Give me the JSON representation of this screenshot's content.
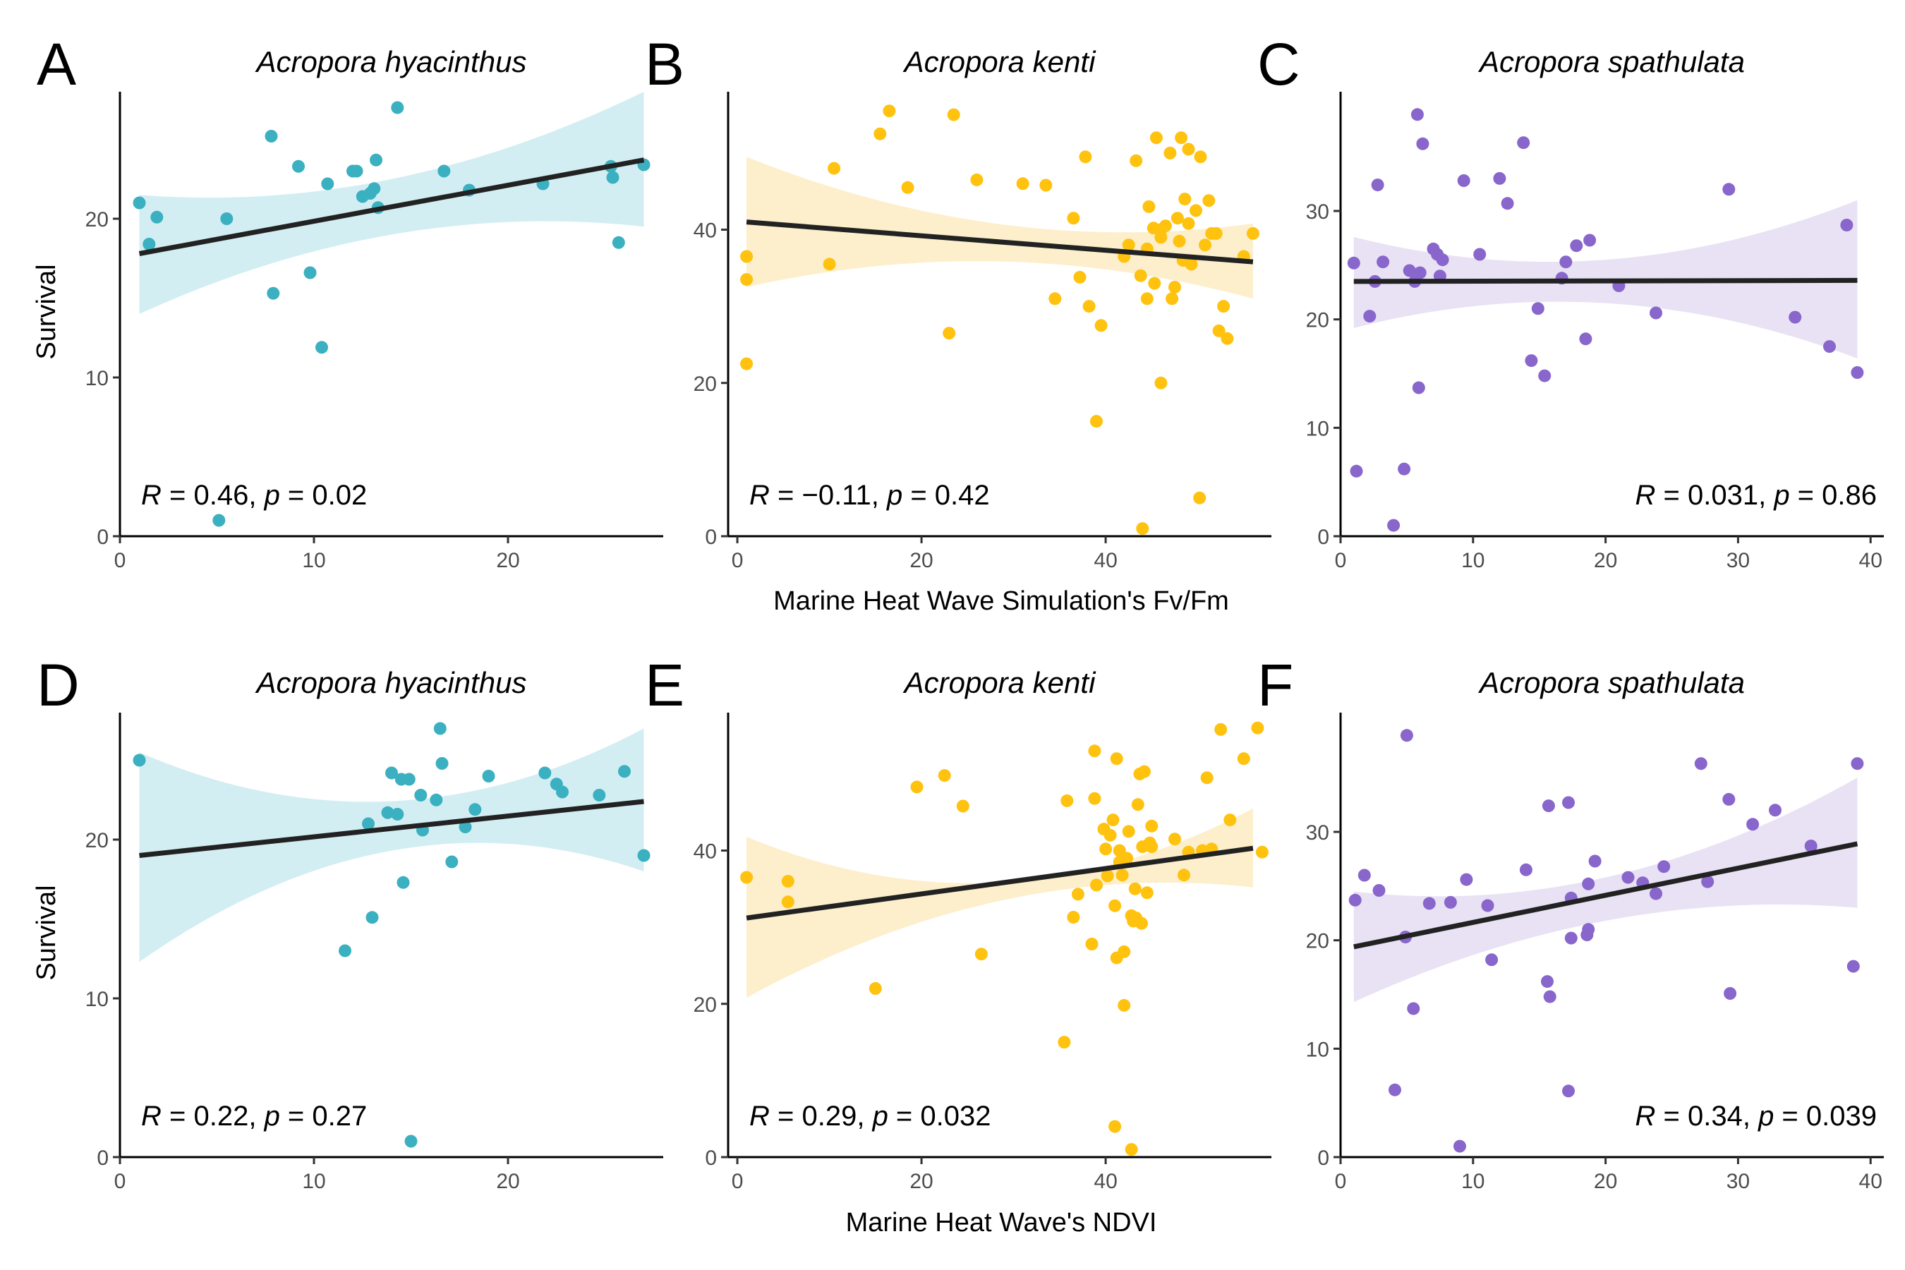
{
  "figure": {
    "row_axis_titles": [
      "Marine Heat Wave Simulation's Fv/Fm",
      "Marine Heat Wave's NDVI"
    ],
    "y_axis_title": "Survival"
  },
  "chart_data": [
    {
      "panel": "A",
      "type": "scatter",
      "title": "Acropora hyacinthus",
      "color": "#3BB0C0",
      "band_color": "#D3EEF3",
      "xlim": [
        0,
        28
      ],
      "ylim": [
        0,
        28
      ],
      "xticks": [
        0,
        10,
        20
      ],
      "yticks": [
        0,
        10,
        20
      ],
      "fit": {
        "x": [
          1,
          27
        ],
        "y": [
          17.8,
          23.7
        ]
      },
      "band": {
        "x": [
          1,
          14,
          27
        ],
        "upper": [
          21.5,
          22.5,
          28.0
        ],
        "lower": [
          14.0,
          19.0,
          19.5
        ]
      },
      "stat": {
        "r": "0.46",
        "p": "0.02"
      },
      "stat_anchor": "left",
      "points": [
        [
          1.0,
          21.0
        ],
        [
          1.5,
          18.4
        ],
        [
          1.9,
          20.1
        ],
        [
          5.1,
          1.0
        ],
        [
          5.5,
          20.0
        ],
        [
          7.8,
          25.2
        ],
        [
          7.9,
          15.3
        ],
        [
          9.2,
          23.3
        ],
        [
          9.8,
          16.6
        ],
        [
          10.4,
          11.9
        ],
        [
          10.7,
          22.2
        ],
        [
          12.0,
          23.0
        ],
        [
          12.2,
          23.0
        ],
        [
          12.5,
          21.4
        ],
        [
          12.9,
          21.6
        ],
        [
          13.1,
          21.9
        ],
        [
          13.2,
          23.7
        ],
        [
          13.3,
          20.7
        ],
        [
          14.3,
          27.0
        ],
        [
          16.7,
          23.0
        ],
        [
          18.0,
          21.8
        ],
        [
          21.8,
          22.2
        ],
        [
          25.3,
          23.3
        ],
        [
          25.4,
          22.6
        ],
        [
          25.7,
          18.5
        ],
        [
          27.0,
          23.4
        ]
      ]
    },
    {
      "panel": "B",
      "type": "scatter",
      "title": "Acropora kenti",
      "color": "#FFC20E",
      "band_color": "#FDEFCC",
      "xlim": [
        -1,
        58
      ],
      "ylim": [
        0,
        58
      ],
      "xticks": [
        0,
        20,
        40
      ],
      "yticks": [
        0,
        20,
        40
      ],
      "fit": {
        "x": [
          1,
          56
        ],
        "y": [
          41.0,
          35.8
        ]
      },
      "band": {
        "x": [
          1,
          30,
          56
        ],
        "upper": [
          49.5,
          40.5,
          40.8
        ],
        "lower": [
          32.5,
          35.8,
          31.0
        ]
      },
      "stat": {
        "r": "−0.11",
        "p": "0.42"
      },
      "stat_anchor": "left",
      "points": [
        [
          1.0,
          36.5
        ],
        [
          1.0,
          33.5
        ],
        [
          1.0,
          22.5
        ],
        [
          10.0,
          35.5
        ],
        [
          10.5,
          48.0
        ],
        [
          15.5,
          52.5
        ],
        [
          16.5,
          55.5
        ],
        [
          18.5,
          45.5
        ],
        [
          23.0,
          26.5
        ],
        [
          23.5,
          55.0
        ],
        [
          26.0,
          46.5
        ],
        [
          31.0,
          46.0
        ],
        [
          33.5,
          45.8
        ],
        [
          34.5,
          31.0
        ],
        [
          36.5,
          41.5
        ],
        [
          37.2,
          33.8
        ],
        [
          37.8,
          49.5
        ],
        [
          38.2,
          30.0
        ],
        [
          39.0,
          15.0
        ],
        [
          39.5,
          27.5
        ],
        [
          42.0,
          36.5
        ],
        [
          42.5,
          38.0
        ],
        [
          43.3,
          49.0
        ],
        [
          43.8,
          34.0
        ],
        [
          44.0,
          1.0
        ],
        [
          44.5,
          37.5
        ],
        [
          44.5,
          31.0
        ],
        [
          44.7,
          43.0
        ],
        [
          45.2,
          40.2
        ],
        [
          45.3,
          33.0
        ],
        [
          45.5,
          52.0
        ],
        [
          46.0,
          40.0
        ],
        [
          46.0,
          39.0
        ],
        [
          46.0,
          20.0
        ],
        [
          46.5,
          40.5
        ],
        [
          47.0,
          50.0
        ],
        [
          47.2,
          31.0
        ],
        [
          47.5,
          32.5
        ],
        [
          47.8,
          41.5
        ],
        [
          48.0,
          38.5
        ],
        [
          48.2,
          52.0
        ],
        [
          48.4,
          36.0
        ],
        [
          48.6,
          44.0
        ],
        [
          49.0,
          50.5
        ],
        [
          49.0,
          40.8
        ],
        [
          49.3,
          35.5
        ],
        [
          49.8,
          42.5
        ],
        [
          50.2,
          5.0
        ],
        [
          50.3,
          49.5
        ],
        [
          50.8,
          38.0
        ],
        [
          51.2,
          43.8
        ],
        [
          51.5,
          39.5
        ],
        [
          52.0,
          39.5
        ],
        [
          52.3,
          26.8
        ],
        [
          52.8,
          30.0
        ],
        [
          53.2,
          25.8
        ],
        [
          55.0,
          36.5
        ],
        [
          56.0,
          39.5
        ]
      ]
    },
    {
      "panel": "C",
      "type": "scatter",
      "title": "Acropora spathulata",
      "color": "#8866CC",
      "band_color": "#E8E2F4",
      "xlim": [
        0,
        41
      ],
      "ylim": [
        0,
        41
      ],
      "xticks": [
        0,
        10,
        20,
        30,
        40
      ],
      "yticks": [
        0,
        10,
        20,
        30
      ],
      "fit": {
        "x": [
          1,
          39
        ],
        "y": [
          23.5,
          23.6
        ]
      },
      "band": {
        "x": [
          1,
          20,
          39
        ],
        "upper": [
          27.6,
          25.5,
          31.0
        ],
        "lower": [
          19.2,
          21.5,
          16.4
        ]
      },
      "stat": {
        "r": "0.031",
        "p": "0.86"
      },
      "stat_anchor": "right",
      "points": [
        [
          1.0,
          25.2
        ],
        [
          1.2,
          6.0
        ],
        [
          2.2,
          20.3
        ],
        [
          2.6,
          23.5
        ],
        [
          2.8,
          32.4
        ],
        [
          3.2,
          25.3
        ],
        [
          4.0,
          1.0
        ],
        [
          4.8,
          6.2
        ],
        [
          5.2,
          24.5
        ],
        [
          5.6,
          23.5
        ],
        [
          5.8,
          38.9
        ],
        [
          5.9,
          13.7
        ],
        [
          6.0,
          24.3
        ],
        [
          6.2,
          36.2
        ],
        [
          7.0,
          26.5
        ],
        [
          7.3,
          26.0
        ],
        [
          7.5,
          24.0
        ],
        [
          7.7,
          25.5
        ],
        [
          9.3,
          32.8
        ],
        [
          10.5,
          26.0
        ],
        [
          12.0,
          33.0
        ],
        [
          12.6,
          30.7
        ],
        [
          13.8,
          36.3
        ],
        [
          14.4,
          16.2
        ],
        [
          14.9,
          21.0
        ],
        [
          15.4,
          14.8
        ],
        [
          16.7,
          23.8
        ],
        [
          17.0,
          25.3
        ],
        [
          17.8,
          26.8
        ],
        [
          18.5,
          18.2
        ],
        [
          18.8,
          27.3
        ],
        [
          21.0,
          23.1
        ],
        [
          23.8,
          20.6
        ],
        [
          29.3,
          32.0
        ],
        [
          34.3,
          20.2
        ],
        [
          36.9,
          17.5
        ],
        [
          38.2,
          28.7
        ],
        [
          39.0,
          15.1
        ]
      ]
    },
    {
      "panel": "D",
      "type": "scatter",
      "title": "Acropora hyacinthus",
      "color": "#3BB0C0",
      "band_color": "#D3EEF3",
      "xlim": [
        0,
        28
      ],
      "ylim": [
        0,
        28
      ],
      "xticks": [
        0,
        10,
        20
      ],
      "yticks": [
        0,
        10,
        20
      ],
      "fit": {
        "x": [
          1,
          27
        ],
        "y": [
          19.0,
          22.4
        ]
      },
      "band": {
        "x": [
          1,
          15,
          27
        ],
        "upper": [
          25.5,
          22.5,
          27.0
        ],
        "lower": [
          12.3,
          19.5,
          18.0
        ]
      },
      "stat": {
        "r": "0.22",
        "p": "0.27"
      },
      "stat_anchor": "left",
      "points": [
        [
          1.0,
          25.0
        ],
        [
          11.6,
          13.0
        ],
        [
          12.8,
          21.0
        ],
        [
          13.0,
          15.1
        ],
        [
          13.8,
          21.7
        ],
        [
          14.0,
          24.2
        ],
        [
          14.3,
          21.6
        ],
        [
          14.5,
          23.8
        ],
        [
          14.6,
          17.3
        ],
        [
          14.9,
          23.8
        ],
        [
          15.0,
          1.0
        ],
        [
          15.5,
          22.8
        ],
        [
          15.6,
          20.6
        ],
        [
          16.3,
          22.5
        ],
        [
          16.5,
          27.0
        ],
        [
          16.6,
          24.8
        ],
        [
          17.1,
          18.6
        ],
        [
          17.8,
          20.8
        ],
        [
          18.3,
          21.9
        ],
        [
          19.0,
          24.0
        ],
        [
          21.9,
          24.2
        ],
        [
          22.5,
          23.5
        ],
        [
          22.8,
          23.0
        ],
        [
          24.7,
          22.8
        ],
        [
          26.0,
          24.3
        ],
        [
          27.0,
          19.0
        ]
      ]
    },
    {
      "panel": "E",
      "type": "scatter",
      "title": "Acropora kenti",
      "color": "#FFC20E",
      "band_color": "#FDEFCC",
      "xlim": [
        -1,
        58
      ],
      "ylim": [
        0,
        58
      ],
      "xticks": [
        0,
        20,
        40
      ],
      "yticks": [
        0,
        20,
        40
      ],
      "fit": {
        "x": [
          1,
          56
        ],
        "y": [
          31.2,
          40.3
        ]
      },
      "band": {
        "x": [
          1,
          40,
          56
        ],
        "upper": [
          41.8,
          38.0,
          45.5
        ],
        "lower": [
          20.8,
          35.5,
          35.2
        ]
      },
      "stat": {
        "r": "0.29",
        "p": "0.032"
      },
      "stat_anchor": "left",
      "points": [
        [
          1.0,
          36.5
        ],
        [
          5.5,
          36.0
        ],
        [
          5.5,
          33.3
        ],
        [
          15.0,
          22.0
        ],
        [
          19.5,
          48.3
        ],
        [
          22.5,
          49.8
        ],
        [
          24.5,
          45.8
        ],
        [
          26.5,
          26.5
        ],
        [
          35.5,
          15.0
        ],
        [
          35.8,
          46.5
        ],
        [
          36.5,
          31.3
        ],
        [
          37.0,
          34.3
        ],
        [
          38.5,
          27.8
        ],
        [
          38.8,
          53.0
        ],
        [
          38.8,
          46.8
        ],
        [
          39.0,
          35.5
        ],
        [
          39.8,
          42.8
        ],
        [
          40.0,
          40.2
        ],
        [
          40.2,
          36.7
        ],
        [
          40.5,
          42.0
        ],
        [
          40.8,
          44.0
        ],
        [
          41.0,
          32.8
        ],
        [
          41.2,
          52.0
        ],
        [
          41.2,
          26.0
        ],
        [
          41.5,
          40.0
        ],
        [
          41.5,
          38.5
        ],
        [
          41.8,
          36.8
        ],
        [
          42.0,
          26.8
        ],
        [
          42.0,
          19.8
        ],
        [
          42.3,
          39.0
        ],
        [
          42.5,
          42.5
        ],
        [
          42.8,
          1.0
        ],
        [
          42.8,
          31.5
        ],
        [
          43.0,
          30.8
        ],
        [
          43.2,
          35.0
        ],
        [
          43.3,
          31.2
        ],
        [
          43.5,
          46.0
        ],
        [
          43.7,
          50.0
        ],
        [
          43.9,
          30.5
        ],
        [
          44.0,
          40.5
        ],
        [
          44.2,
          50.3
        ],
        [
          44.5,
          34.5
        ],
        [
          44.8,
          41.0
        ],
        [
          45.0,
          43.2
        ],
        [
          45.0,
          40.5
        ],
        [
          47.5,
          41.5
        ],
        [
          48.5,
          36.8
        ],
        [
          49.0,
          39.8
        ],
        [
          50.5,
          40.0
        ],
        [
          51.0,
          49.5
        ],
        [
          51.5,
          40.2
        ],
        [
          52.5,
          55.8
        ],
        [
          53.5,
          44.0
        ],
        [
          55.0,
          52.0
        ],
        [
          56.5,
          56.0
        ],
        [
          57.0,
          39.8
        ],
        [
          41.0,
          4.0
        ]
      ]
    },
    {
      "panel": "F",
      "type": "scatter",
      "title": "Acropora spathulata",
      "color": "#8866CC",
      "band_color": "#E8E2F4",
      "xlim": [
        0,
        41
      ],
      "ylim": [
        0,
        41
      ],
      "xticks": [
        0,
        10,
        20,
        30,
        40
      ],
      "yticks": [
        0,
        10,
        20,
        30
      ],
      "fit": {
        "x": [
          1,
          39
        ],
        "y": [
          19.4,
          28.9
        ]
      },
      "band": {
        "x": [
          1,
          20,
          39
        ],
        "upper": [
          24.5,
          25.8,
          35.0
        ],
        "lower": [
          14.3,
          21.8,
          23.0
        ]
      },
      "stat": {
        "r": "0.34",
        "p": "0.039"
      },
      "stat_anchor": "right",
      "points": [
        [
          1.1,
          23.7
        ],
        [
          1.8,
          26.0
        ],
        [
          2.9,
          24.6
        ],
        [
          4.1,
          6.2
        ],
        [
          4.9,
          20.3
        ],
        [
          5.0,
          38.9
        ],
        [
          5.5,
          13.7
        ],
        [
          6.7,
          23.4
        ],
        [
          8.3,
          23.5
        ],
        [
          9.0,
          1.0
        ],
        [
          9.5,
          25.6
        ],
        [
          11.1,
          23.2
        ],
        [
          11.4,
          18.2
        ],
        [
          14.0,
          26.5
        ],
        [
          15.6,
          16.2
        ],
        [
          15.7,
          32.4
        ],
        [
          15.8,
          14.8
        ],
        [
          17.2,
          32.7
        ],
        [
          17.2,
          6.1
        ],
        [
          17.4,
          20.2
        ],
        [
          17.4,
          23.9
        ],
        [
          18.6,
          20.5
        ],
        [
          18.7,
          21.0
        ],
        [
          18.7,
          25.2
        ],
        [
          19.2,
          27.3
        ],
        [
          21.7,
          25.8
        ],
        [
          22.8,
          25.3
        ],
        [
          23.8,
          24.3
        ],
        [
          24.4,
          26.8
        ],
        [
          27.2,
          36.3
        ],
        [
          27.7,
          25.4
        ],
        [
          29.3,
          33.0
        ],
        [
          29.4,
          15.1
        ],
        [
          31.1,
          30.7
        ],
        [
          32.8,
          32.0
        ],
        [
          35.5,
          28.7
        ],
        [
          38.7,
          17.6
        ],
        [
          39.0,
          36.3
        ]
      ]
    }
  ]
}
